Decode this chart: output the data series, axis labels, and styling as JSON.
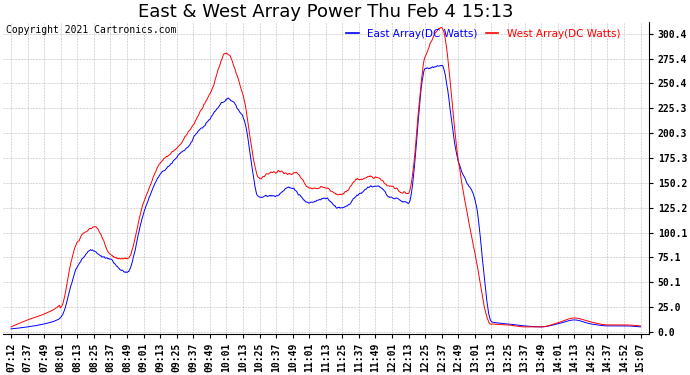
{
  "title": "East & West Array Power Thu Feb 4 15:13",
  "copyright": "Copyright 2021 Cartronics.com",
  "legend_east": "East Array(DC Watts)",
  "legend_west": "West Array(DC Watts)",
  "east_color": "blue",
  "west_color": "red",
  "background_color": "#ffffff",
  "grid_color": "#aaaaaa",
  "yticks": [
    0.0,
    25.0,
    50.1,
    75.1,
    100.1,
    125.2,
    150.2,
    175.3,
    200.3,
    225.3,
    250.4,
    275.4,
    300.4
  ],
  "ylim": [
    -2,
    312
  ],
  "title_fontsize": 13,
  "tick_fontsize": 7,
  "copyright_fontsize": 7,
  "xtick_labels": [
    "07:12",
    "07:37",
    "07:49",
    "08:01",
    "08:13",
    "08:25",
    "08:37",
    "08:49",
    "09:01",
    "09:13",
    "09:25",
    "09:37",
    "09:49",
    "10:01",
    "10:13",
    "10:25",
    "10:37",
    "10:49",
    "11:01",
    "11:13",
    "11:25",
    "11:37",
    "11:49",
    "12:01",
    "12:13",
    "12:25",
    "12:37",
    "12:49",
    "13:01",
    "13:13",
    "13:25",
    "13:37",
    "13:49",
    "14:01",
    "14:13",
    "14:25",
    "14:37",
    "14:52",
    "15:07"
  ],
  "east_knots_x": [
    0,
    1,
    2,
    3,
    4,
    5,
    6,
    7,
    8,
    9,
    10,
    11,
    12,
    13,
    14,
    15,
    16,
    17,
    18,
    19,
    20,
    21,
    22,
    23,
    24,
    25,
    26,
    27,
    28,
    29,
    30,
    31,
    32,
    33,
    34,
    35,
    36,
    37,
    38
  ],
  "east_knots_y": [
    3,
    5,
    8,
    14,
    65,
    83,
    72,
    60,
    120,
    158,
    175,
    195,
    215,
    235,
    218,
    135,
    140,
    145,
    130,
    135,
    125,
    140,
    145,
    135,
    130,
    265,
    270,
    170,
    135,
    10,
    8,
    6,
    5,
    8,
    12,
    8,
    6,
    6,
    5
  ],
  "west_knots_x": [
    0,
    1,
    2,
    3,
    4,
    5,
    6,
    7,
    8,
    9,
    10,
    11,
    12,
    13,
    14,
    15,
    16,
    17,
    18,
    19,
    20,
    21,
    22,
    23,
    24,
    25,
    26,
    27,
    28,
    29,
    30,
    31,
    32,
    33,
    34,
    35,
    36,
    37,
    38
  ],
  "west_knots_y": [
    5,
    12,
    18,
    28,
    90,
    105,
    80,
    73,
    130,
    168,
    185,
    210,
    240,
    280,
    240,
    155,
    160,
    160,
    145,
    145,
    140,
    155,
    155,
    145,
    140,
    280,
    305,
    175,
    80,
    8,
    7,
    5,
    5,
    9,
    14,
    10,
    7,
    7,
    6
  ]
}
